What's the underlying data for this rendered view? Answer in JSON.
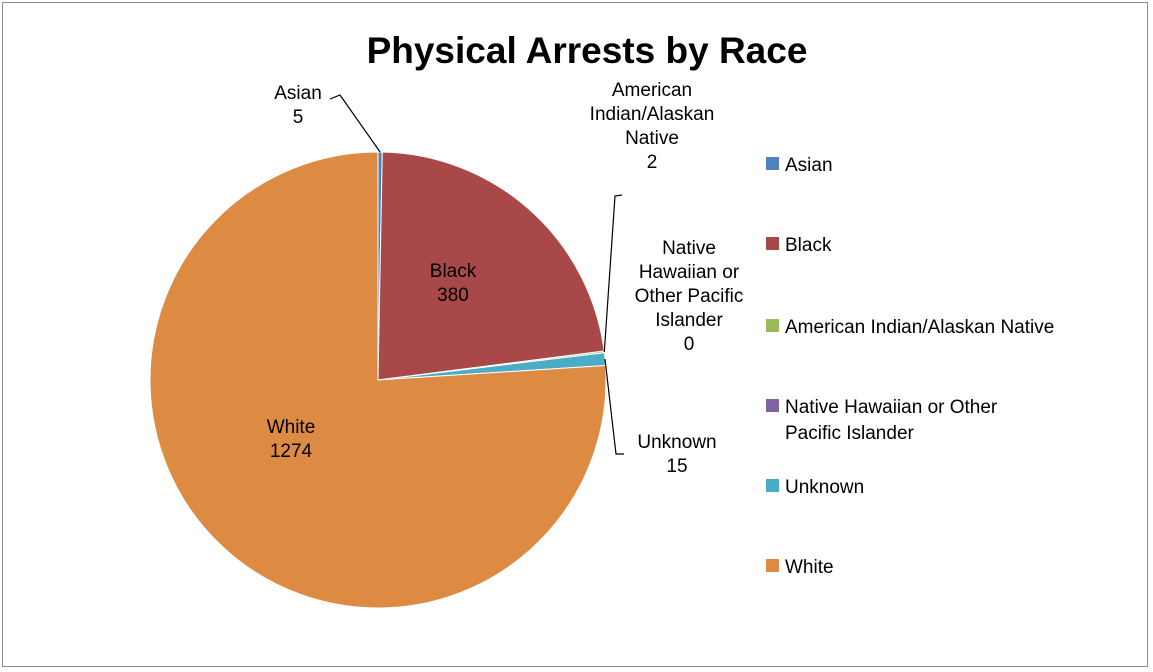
{
  "chart_data": {
    "type": "pie",
    "title": "Physical Arrests by Race",
    "legend_position": "right",
    "categories": [
      "Asian",
      "Black",
      "American Indian/Alaskan Native",
      "Native Hawaiian or Other Pacific Islander",
      "Unknown",
      "White"
    ],
    "values": [
      5,
      380,
      2,
      0,
      15,
      1274
    ],
    "colors": [
      "#4f81bd",
      "#a84848",
      "#9bbb59",
      "#8064a2",
      "#4bacc6",
      "#dd8a42"
    ],
    "data_labels": [
      {
        "category": "Asian",
        "name_lines": [
          "Asian"
        ],
        "value": "5"
      },
      {
        "category": "Black",
        "name_lines": [
          "Black"
        ],
        "value": "380"
      },
      {
        "category": "American Indian/Alaskan Native",
        "name_lines": [
          "American",
          "Indian/Alaskan",
          "Native"
        ],
        "value": "2"
      },
      {
        "category": "Native Hawaiian or Other Pacific Islander",
        "name_lines": [
          "Native",
          "Hawaiian or",
          "Other Pacific",
          "Islander"
        ],
        "value": "0"
      },
      {
        "category": "Unknown",
        "name_lines": [
          "Unknown"
        ],
        "value": "15"
      },
      {
        "category": "White",
        "name_lines": [
          "White"
        ],
        "value": "1274"
      }
    ],
    "legend": [
      {
        "lines": [
          "Asian"
        ]
      },
      {
        "lines": [
          "Black"
        ]
      },
      {
        "lines": [
          "American Indian/Alaskan Native"
        ]
      },
      {
        "lines": [
          "Native Hawaiian or Other",
          "Pacific Islander"
        ]
      },
      {
        "lines": [
          "Unknown"
        ]
      },
      {
        "lines": [
          "White"
        ]
      }
    ]
  }
}
